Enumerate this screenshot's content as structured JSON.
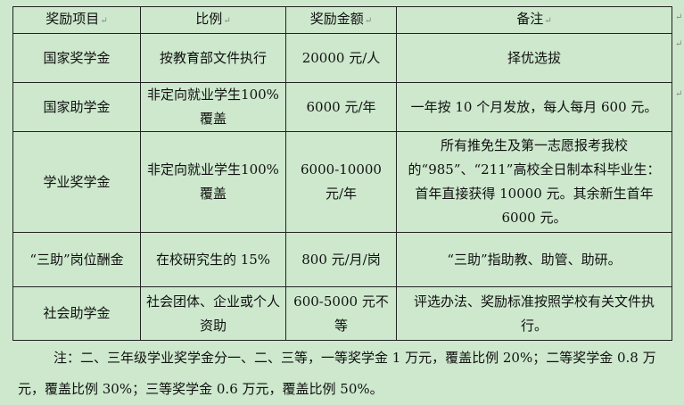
{
  "table": {
    "headers": [
      "奖励项目",
      "比例",
      "奖励金额",
      "备注"
    ],
    "rows": [
      [
        "国家奖学金",
        "按教育部文件执行",
        "20000 元/人",
        "择优选拔"
      ],
      [
        "国家助学金",
        "非定向就业学生100%覆盖",
        "6000 元/年",
        "一年按 10 个月发放，每人每月 600 元。"
      ],
      [
        "学业奖学金",
        "非定向就业学生100%覆盖",
        "6000-10000 元/年",
        "所有推免生及第一志愿报考我校的“985”、“211”高校全日制本科毕业生：首年直接获得 10000 元。其余新生首年 6000 元。"
      ],
      [
        "“三助”岗位酬金",
        "在校研究生的 15%",
        "800 元/月/岗",
        "“三助”指助教、助管、助研。"
      ],
      [
        "社会助学金",
        "社会团体、企业或个人资助",
        "600-5000 元不等",
        "评选办法、奖励标准按照学校有关文件执行。"
      ]
    ]
  },
  "note": "注：二、三年级学业奖学金分一、二、三等，一等奖学金 1 万元，覆盖比例 20%；二等奖学金 0.8 万元，覆盖比例 30%；三等奖学金 0.6 万元，覆盖比例 50%。",
  "paragraph_mark": "↵"
}
